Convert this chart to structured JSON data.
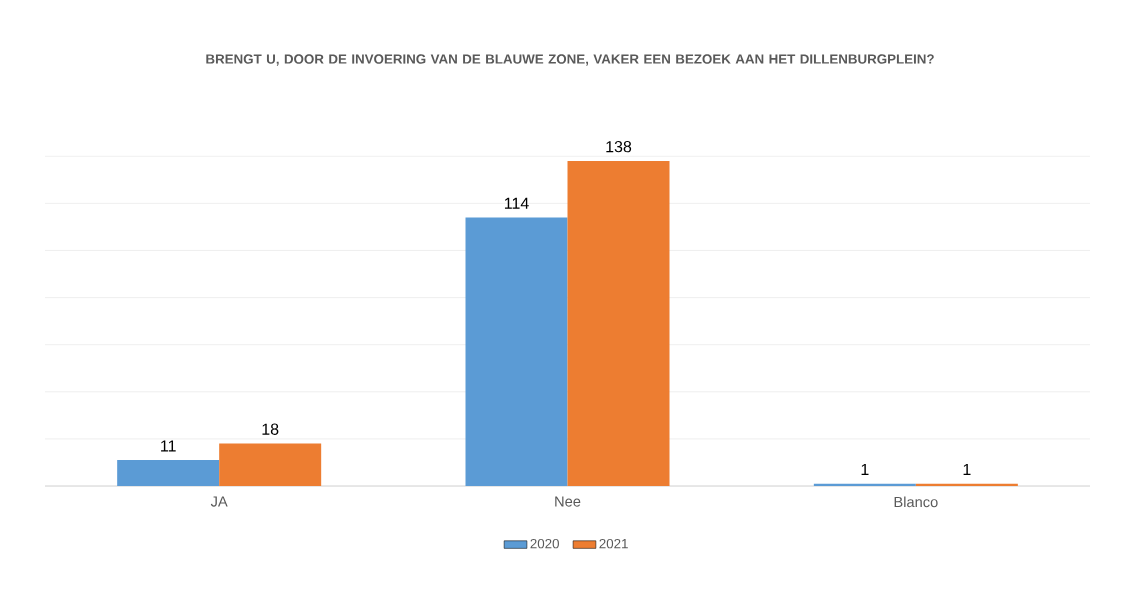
{
  "chart_data": {
    "type": "bar",
    "title": "BRENGT U, DOOR DE INVOERING VAN DE BLAUWE ZONE, VAKER EEN BEZOEK AAN HET DILLENBURGPLEIN?",
    "categories": [
      "JA",
      "Nee",
      "Blanco"
    ],
    "series": [
      {
        "name": "2020",
        "color": "#5b9bd5",
        "values": [
          11,
          114,
          1
        ]
      },
      {
        "name": "2021",
        "color": "#ed7d31",
        "values": [
          18,
          138,
          1
        ]
      }
    ],
    "grid": "y",
    "legend": "bottom",
    "data_labels": true,
    "tick_labels": "x"
  }
}
